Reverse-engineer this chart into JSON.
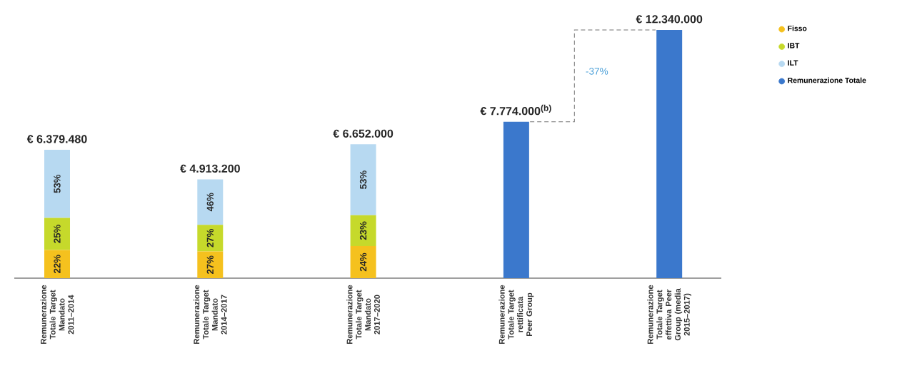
{
  "chart_data": {
    "type": "bar",
    "stacked": true,
    "categories": [
      "Remunerazione Totale Target Mandato 2011–2014",
      "Remunerazione Totale Target Mandato 2014–2017",
      "Remunerazione Totale Target Mandato 2017–2020",
      "Remunerazione Totale Target rettificata Peer Group",
      "Remunerazione Totale Target effettiva Peer Group (media 2015–2017)"
    ],
    "series": [
      {
        "name": "Fisso",
        "color": "#f5c11e",
        "values": [
          1403000,
          1327000,
          1596000,
          null,
          null
        ]
      },
      {
        "name": "IBT",
        "color": "#c6d92b",
        "values": [
          1595000,
          1327000,
          1530000,
          null,
          null
        ]
      },
      {
        "name": "ILT",
        "color": "#b7d9f1",
        "values": [
          3381480,
          2259200,
          3526000,
          null,
          null
        ]
      },
      {
        "name": "Remunerazione Totale",
        "color": "#3b78cc",
        "values": [
          null,
          null,
          null,
          7774000,
          12340000
        ],
        "value_labels": [
          null,
          null,
          null,
          "€ 7.774.000$^{(b)}$",
          "€ 12.340.000"
        ]
      }
    ],
    "totals": [
      "€ 6.379.480",
      "€ 4.913.200",
      "€ 6.652.000",
      null,
      null
    ],
    "annotations": [
      "22%",
      "25%",
      "53%",
      "27%",
      "27%",
      "46%",
      "24%",
      "23%",
      "53%",
      "-37%"
    ],
    "legend": "top right"
  }
}
